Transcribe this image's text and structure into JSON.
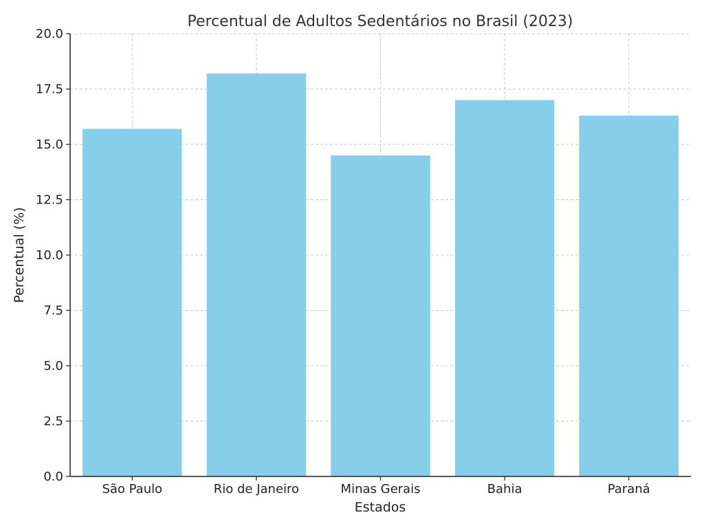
{
  "chart_data": {
    "type": "bar",
    "title": "Percentual de Adultos Sedentários no Brasil (2023)",
    "xlabel": "Estados",
    "ylabel": "Percentual (%)",
    "categories": [
      "São Paulo",
      "Rio de Janeiro",
      "Minas Gerais",
      "Bahia",
      "Paraná"
    ],
    "values": [
      15.7,
      18.2,
      14.5,
      17.0,
      16.3
    ],
    "ylim": [
      0,
      20
    ],
    "yticks": [
      "0.0",
      "2.5",
      "5.0",
      "7.5",
      "10.0",
      "12.5",
      "15.0",
      "17.5",
      "20.0"
    ],
    "bar_color": "#87CEEB",
    "grid": true
  }
}
